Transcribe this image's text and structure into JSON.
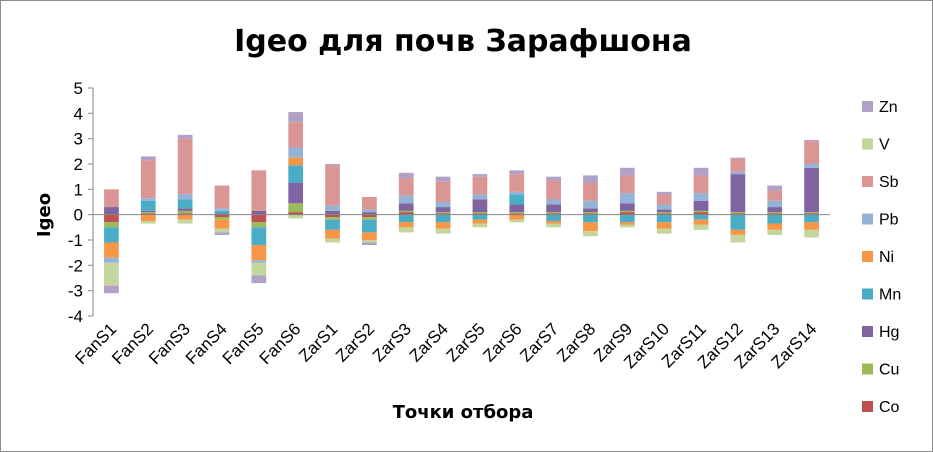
{
  "chart_data": {
    "type": "bar",
    "stacked": true,
    "title": "Igeo для почв Зарафшона",
    "xlabel": "Точки отбора",
    "ylabel": "Igeo",
    "ylim": [
      -4,
      5
    ],
    "yticks": [
      "5",
      "4",
      "3",
      "2",
      "1",
      "0",
      "-1",
      "-2",
      "-3",
      "-4"
    ],
    "grid": false,
    "legend_position": "right",
    "categories": [
      "FanS1",
      "FanS2",
      "FanS3",
      "FanS4",
      "FanS5",
      "FanS6",
      "ZarS1",
      "ZarS2",
      "ZarS3",
      "ZarS4",
      "ZarS5",
      "ZarS6",
      "ZarS7",
      "ZarS8",
      "ZarS9",
      "ZarS10",
      "ZarS11",
      "ZarS12",
      "ZarS13",
      "ZarS14"
    ],
    "series": [
      {
        "name": "Co",
        "color": "#c0504d",
        "values": [
          -0.3,
          0.05,
          0.05,
          -0.1,
          -0.3,
          0.1,
          -0.1,
          -0.1,
          0.1,
          0.05,
          0.05,
          0.05,
          0.05,
          0.05,
          0.1,
          0.05,
          0.1,
          0.05,
          0.05,
          0.05
        ]
      },
      {
        "name": "Cu",
        "color": "#9bbb59",
        "values": [
          -0.2,
          0.05,
          0.1,
          -0.1,
          -0.2,
          0.35,
          -0.1,
          -0.1,
          0.05,
          0.05,
          0.05,
          0.05,
          0.05,
          0.05,
          0.05,
          0.05,
          0.05,
          0.05,
          0.05,
          0.05
        ]
      },
      {
        "name": "Hg",
        "color": "#8064a2",
        "values": [
          0.3,
          0.05,
          0.1,
          0.05,
          0.15,
          0.8,
          0.15,
          0.1,
          0.3,
          0.2,
          0.5,
          0.3,
          0.3,
          0.15,
          0.3,
          0.1,
          0.4,
          1.5,
          0.2,
          1.75
        ]
      },
      {
        "name": "Mn",
        "color": "#4bacc6",
        "values": [
          -0.6,
          0.4,
          0.35,
          0.1,
          -0.7,
          0.7,
          -0.4,
          -0.5,
          -0.3,
          -0.3,
          -0.2,
          0.4,
          -0.25,
          -0.3,
          -0.3,
          -0.3,
          -0.2,
          -0.6,
          -0.35,
          -0.3
        ]
      },
      {
        "name": "Ni",
        "color": "#f79646",
        "values": [
          -0.6,
          -0.25,
          -0.2,
          -0.35,
          -0.6,
          0.3,
          -0.35,
          -0.3,
          -0.2,
          -0.25,
          -0.15,
          -0.2,
          -0.1,
          -0.35,
          -0.1,
          -0.25,
          -0.2,
          -0.2,
          -0.25,
          -0.3
        ]
      },
      {
        "name": "Pb",
        "color": "#95b3d7",
        "values": [
          -0.2,
          0.1,
          0.2,
          0.1,
          -0.1,
          0.4,
          0.2,
          0.1,
          0.3,
          0.2,
          0.2,
          0.1,
          0.2,
          0.3,
          0.4,
          0.2,
          0.3,
          0.1,
          0.25,
          0.15
        ]
      },
      {
        "name": "Sb",
        "color": "#d99694",
        "values": [
          0.7,
          1.5,
          2.2,
          0.9,
          1.6,
          1.0,
          1.6,
          0.5,
          0.7,
          0.8,
          0.7,
          0.7,
          0.75,
          0.7,
          0.7,
          0.4,
          0.7,
          0.5,
          0.4,
          0.9
        ]
      },
      {
        "name": "V",
        "color": "#c3d69b",
        "values": [
          -0.9,
          -0.1,
          -0.15,
          -0.15,
          -0.5,
          -0.15,
          -0.15,
          -0.1,
          -0.2,
          -0.2,
          -0.15,
          -0.1,
          -0.15,
          -0.2,
          -0.1,
          -0.2,
          -0.2,
          -0.3,
          -0.2,
          -0.3
        ]
      },
      {
        "name": "Zn",
        "color": "#b2a1c7",
        "values": [
          -0.3,
          0.15,
          0.15,
          -0.1,
          -0.3,
          0.4,
          0.05,
          -0.1,
          0.2,
          0.2,
          0.1,
          0.15,
          0.15,
          0.3,
          0.3,
          0.1,
          0.3,
          0.05,
          0.2,
          0.05
        ]
      }
    ],
    "legend_order": [
      "Zn",
      "V",
      "Sb",
      "Pb",
      "Ni",
      "Mn",
      "Hg",
      "Cu",
      "Co"
    ]
  }
}
